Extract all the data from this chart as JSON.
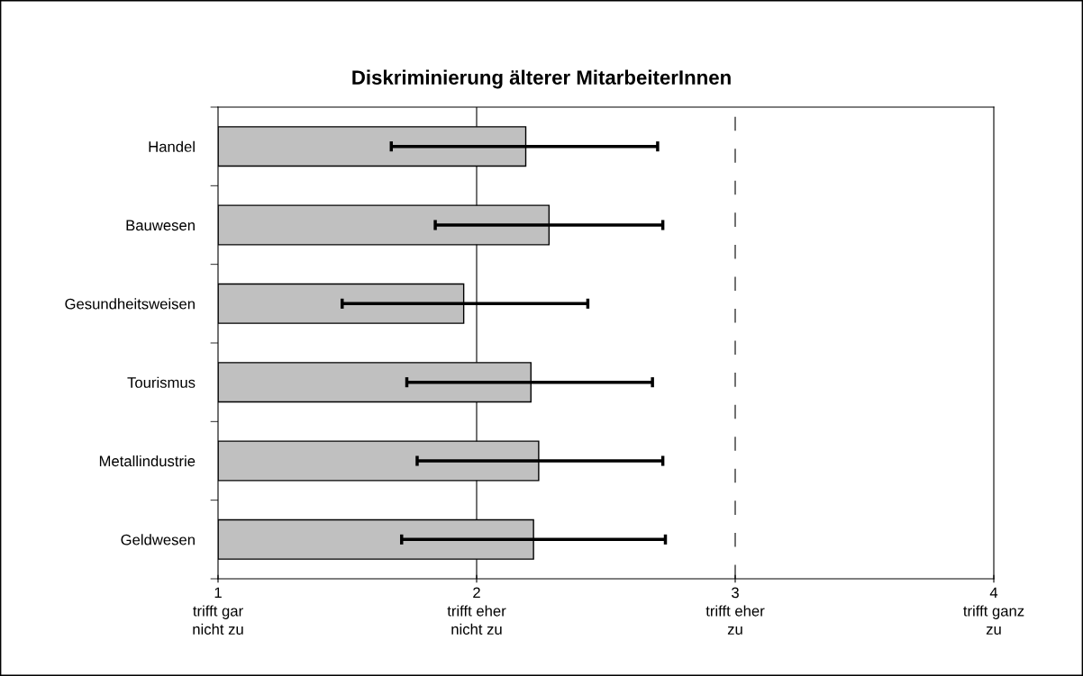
{
  "chart_data": {
    "type": "bar",
    "orientation": "horizontal",
    "title": "Diskriminierung älterer MitarbeiterInnen",
    "categories": [
      "Handel",
      "Bauwesen",
      "Gesundheitsweisen",
      "Tourismus",
      "Metallindustrie",
      "Geldwesen"
    ],
    "values": [
      2.19,
      2.28,
      1.95,
      2.21,
      2.24,
      2.22
    ],
    "errors": [
      [
        1.67,
        2.7
      ],
      [
        1.84,
        2.72
      ],
      [
        1.48,
        2.43
      ],
      [
        1.73,
        2.68
      ],
      [
        1.77,
        2.72
      ],
      [
        1.71,
        2.73
      ]
    ],
    "color": "#c0c0c0",
    "xlim": [
      1,
      4
    ],
    "xticks": [
      {
        "value": 1,
        "label": "1\ntrifft gar\nnicht zu"
      },
      {
        "value": 2,
        "label": "2\ntrifft eher\nnicht zu"
      },
      {
        "value": 3,
        "label": "3\ntrifft eher\nzu"
      },
      {
        "value": 4,
        "label": "4\ntrifft ganz\nzu"
      }
    ],
    "ref_lines": [
      {
        "axis": "x",
        "value": 2,
        "color": "#000000",
        "line_style": "solid"
      },
      {
        "axis": "x",
        "value": 3,
        "color": "#000000",
        "line_style": "dashed"
      }
    ],
    "grid": false,
    "legend": false
  }
}
